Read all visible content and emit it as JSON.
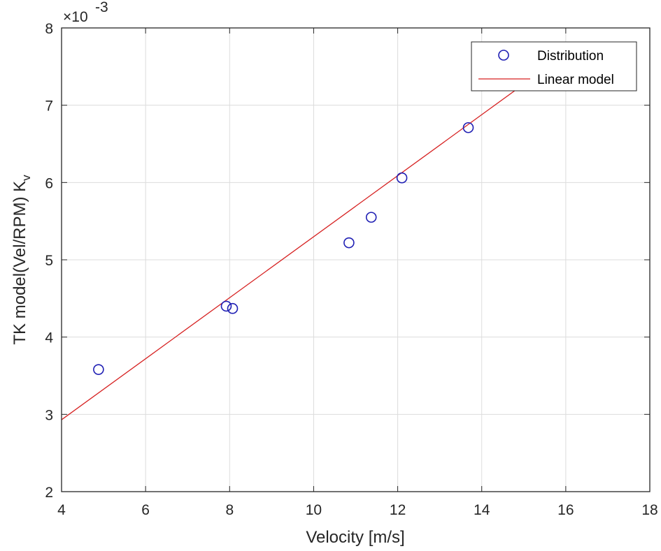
{
  "chart_data": {
    "type": "scatter",
    "xlabel": "Velocity [m/s]",
    "ylabel_main": "TK model(Vel/RPM) K",
    "ylabel_sub": "v",
    "y_exponent_prefix": "×10",
    "y_exponent_power": "-3",
    "xlim": [
      4,
      18
    ],
    "ylim": [
      0.002,
      0.008
    ],
    "xticks": [
      4,
      6,
      8,
      10,
      12,
      14,
      16,
      18
    ],
    "yticks": [
      0.002,
      0.003,
      0.004,
      0.005,
      0.006,
      0.007,
      0.008
    ],
    "xtick_labels": [
      "4",
      "6",
      "8",
      "10",
      "12",
      "14",
      "16",
      "18"
    ],
    "ytick_labels": [
      "2",
      "3",
      "4",
      "5",
      "6",
      "7",
      "8"
    ],
    "grid": true,
    "legend_position": "top-right",
    "series": [
      {
        "name": "Distribution",
        "kind": "scatter",
        "marker": "open-circle",
        "color": "#1f1fb4",
        "points": [
          {
            "x": 4.88,
            "y": 0.00358
          },
          {
            "x": 7.92,
            "y": 0.0044
          },
          {
            "x": 8.07,
            "y": 0.00437
          },
          {
            "x": 10.84,
            "y": 0.00522
          },
          {
            "x": 11.37,
            "y": 0.00555
          },
          {
            "x": 12.1,
            "y": 0.00606
          },
          {
            "x": 13.68,
            "y": 0.00671
          }
        ]
      },
      {
        "name": "Linear model",
        "kind": "line",
        "color": "#d62020",
        "points": [
          {
            "x": 4.0,
            "y": 0.00293
          },
          {
            "x": 15.5,
            "y": 0.00747
          }
        ]
      }
    ]
  }
}
